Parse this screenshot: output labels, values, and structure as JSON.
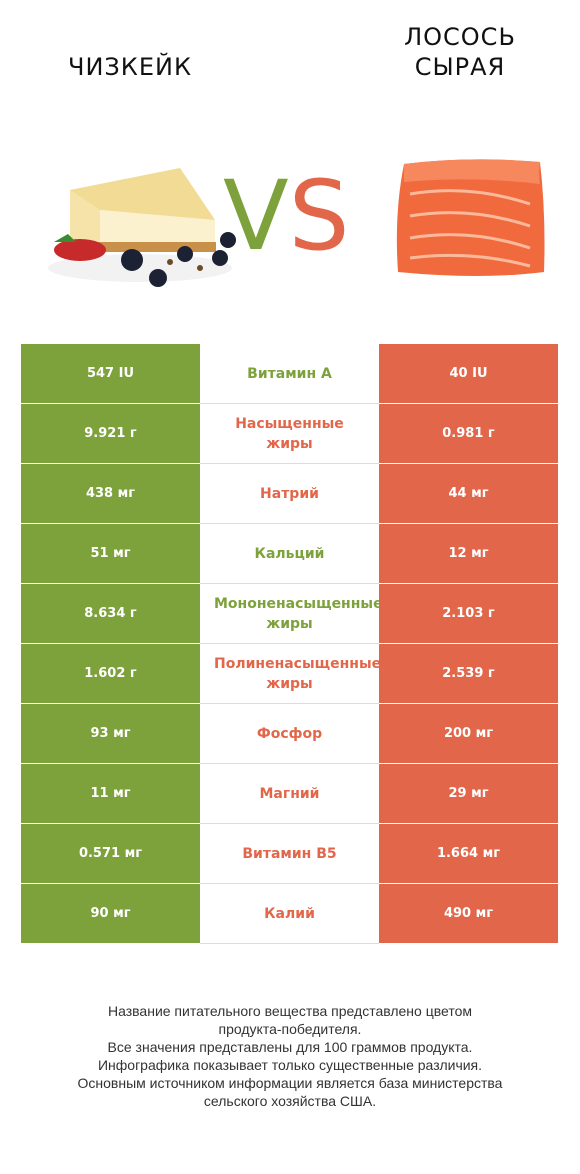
{
  "header": {
    "left_title": "Чизкейк",
    "right_title_line1": "Лосось",
    "right_title_line2": "сырая",
    "vs_v": "V",
    "vs_s": "S"
  },
  "colors": {
    "left": "#7da13b",
    "right": "#e2674a",
    "left_hex": "#7da13b",
    "right_hex": "#e2674a"
  },
  "images": {
    "left": "cheesecake-icon",
    "right": "salmon-fillet-icon"
  },
  "chart_data": {
    "type": "table",
    "rows": [
      {
        "nutrient": [
          "Витамин A"
        ],
        "left": "547 IU",
        "right": "40 IU",
        "winner": "left"
      },
      {
        "nutrient": [
          "Насыщенные",
          "жиры"
        ],
        "left": "9.921 г",
        "right": "0.981 г",
        "winner": "right"
      },
      {
        "nutrient": [
          "Натрий"
        ],
        "left": "438 мг",
        "right": "44 мг",
        "winner": "right"
      },
      {
        "nutrient": [
          "Кальций"
        ],
        "left": "51 мг",
        "right": "12 мг",
        "winner": "left"
      },
      {
        "nutrient": [
          "Мононенасыщенные",
          "жиры"
        ],
        "left": "8.634 г",
        "right": "2.103 г",
        "winner": "left"
      },
      {
        "nutrient": [
          "Полиненасыщенные",
          "жиры"
        ],
        "left": "1.602 г",
        "right": "2.539 г",
        "winner": "right"
      },
      {
        "nutrient": [
          "Фосфор"
        ],
        "left": "93 мг",
        "right": "200 мг",
        "winner": "right"
      },
      {
        "nutrient": [
          "Магний"
        ],
        "left": "11 мг",
        "right": "29 мг",
        "winner": "right"
      },
      {
        "nutrient": [
          "Витамин B5"
        ],
        "left": "0.571 мг",
        "right": "1.664 мг",
        "winner": "right"
      },
      {
        "nutrient": [
          "Калий"
        ],
        "left": "90 мг",
        "right": "490 мг",
        "winner": "right"
      }
    ]
  },
  "footnote": [
    "Название питательного вещества представлено цветом",
    "продукта-победителя.",
    "Все значения представлены для 100 граммов продукта.",
    "Инфографика показывает только существенные различия.",
    "Основным источником информации является база министерства",
    "сельского хозяйства США."
  ]
}
